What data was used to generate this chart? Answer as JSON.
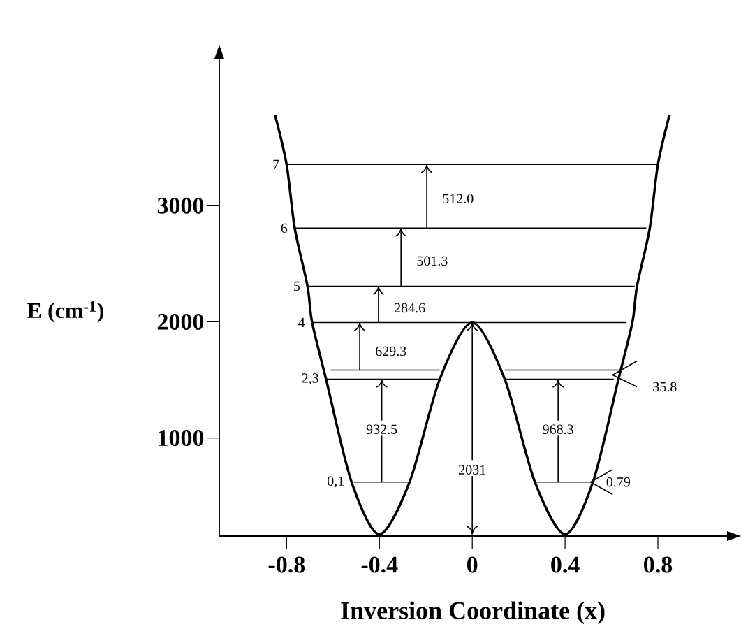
{
  "chart_data": {
    "type": "line",
    "xlabel": "Inversion Coordinate (x)",
    "ylabel": "E (cm$^{-1}$)",
    "xlim": [
      -1.09,
      1.14
    ],
    "ylim": [
      155,
      4350
    ],
    "xticks": [
      -0.8,
      -0.4,
      0,
      0.4,
      0.8
    ],
    "yticks": [
      1000,
      2000,
      3000
    ],
    "series": [
      {
        "color": "#000000",
        "x": [
          -0.85,
          -0.8,
          -0.765,
          -0.71,
          -0.69,
          -0.63,
          -0.52,
          -0.4,
          -0.27,
          -0.14,
          0,
          0.14,
          0.27,
          0.4,
          0.52,
          0.63,
          0.69,
          0.71,
          0.765,
          0.8,
          0.85
        ],
        "values": [
          3783,
          3355,
          2807,
          2307,
          1994,
          1506,
          620,
          170,
          620,
          1506,
          1994,
          1506,
          620,
          170,
          620,
          1506,
          1994,
          2307,
          2807,
          3355,
          3783
        ]
      },
      {
        "color": "#000000",
        "x": [
          -0.52,
          -0.27
        ],
        "values": [
          620,
          620
        ]
      },
      {
        "color": "#000000",
        "x": [
          0.27,
          0.51
        ],
        "values": [
          620,
          620
        ]
      },
      {
        "color": "#000000",
        "x": [
          -0.63,
          -0.14
        ],
        "values": [
          1506,
          1506
        ]
      },
      {
        "color": "#000000",
        "x": [
          -0.61,
          -0.14
        ],
        "values": [
          1584,
          1584
        ]
      },
      {
        "color": "#000000",
        "x": [
          0.14,
          0.61
        ],
        "values": [
          1506,
          1506
        ]
      },
      {
        "color": "#000000",
        "x": [
          0.14,
          0.63
        ],
        "values": [
          1584,
          1584
        ]
      },
      {
        "color": "#000000",
        "x": [
          -0.69,
          0.665
        ],
        "values": [
          1994,
          1994
        ]
      },
      {
        "color": "#000000",
        "x": [
          -0.71,
          0.7
        ],
        "values": [
          2307,
          2307
        ]
      },
      {
        "color": "#000000",
        "x": [
          -0.765,
          0.75
        ],
        "values": [
          2807,
          2807
        ]
      },
      {
        "color": "#000000",
        "x": [
          -0.8,
          0.8
        ],
        "values": [
          3355,
          3355
        ]
      },
      {
        "color": "#000000",
        "x": [
          -0.196,
          -0.196
        ],
        "values": [
          2807,
          3355
        ]
      },
      {
        "color": "#000000",
        "x": [
          -0.307,
          -0.307
        ],
        "values": [
          2307,
          2807
        ]
      },
      {
        "color": "#000000",
        "x": [
          -0.404,
          -0.404
        ],
        "values": [
          1994,
          2307
        ]
      },
      {
        "color": "#000000",
        "x": [
          -0.485,
          -0.485
        ],
        "values": [
          1584,
          1994
        ]
      },
      {
        "color": "#000000",
        "x": [
          -0.39,
          -0.39,
          -0.39
        ],
        "values": [
          620,
          820,
          1020
        ]
      },
      {
        "color": "#000000",
        "x": [
          -0.39,
          -0.39
        ],
        "values": [
          1150,
          1506
        ]
      },
      {
        "color": "#000000",
        "x": [
          0.37,
          0.37,
          0.37
        ],
        "values": [
          620,
          820,
          1020
        ]
      },
      {
        "color": "#000000",
        "x": [
          0.37,
          0.37
        ],
        "values": [
          1150,
          1506
        ]
      },
      {
        "color": "#000000",
        "x": [
          0,
          0
        ],
        "values": [
          810,
          1994
        ]
      },
      {
        "color": "#000000",
        "x": [
          0,
          0
        ],
        "values": [
          672,
          170
        ]
      },
      {
        "color": "#000000",
        "x": [
          0.71,
          0.605,
          0.71
        ],
        "values": [
          1663,
          1542,
          1440
        ]
      },
      {
        "color": "#000000",
        "x": [
          0.605,
          0.51,
          0.605
        ],
        "values": [
          728,
          620,
          513
        ]
      }
    ],
    "annotations": [
      {
        "text": "7",
        "x": -0.8,
        "y": 3355
      },
      {
        "text": "6",
        "x": -0.765,
        "y": 2807
      },
      {
        "text": "5",
        "x": -0.71,
        "y": 2307
      },
      {
        "text": "4",
        "x": -0.69,
        "y": 1994
      },
      {
        "text": "2,3",
        "x": -0.63,
        "y": 1506
      },
      {
        "text": "0,1",
        "x": -0.52,
        "y": 620
      },
      {
        "text": "512.0",
        "x": -0.196,
        "y": 3060
      },
      {
        "text": "501.3",
        "x": -0.307,
        "y": 2524
      },
      {
        "text": "284.6",
        "x": -0.404,
        "y": 2120
      },
      {
        "text": "629.3",
        "x": -0.485,
        "y": 1747
      },
      {
        "text": "932.5",
        "x": -0.39,
        "y": 1020
      },
      {
        "text": "968.3",
        "x": 0.37,
        "y": 1020
      },
      {
        "text": "2031",
        "x": 0,
        "y": 672
      },
      {
        "text": "35.8",
        "x": 0.71,
        "y": 1440
      },
      {
        "text": "0.79",
        "x": 0.51,
        "y": 620
      }
    ]
  }
}
